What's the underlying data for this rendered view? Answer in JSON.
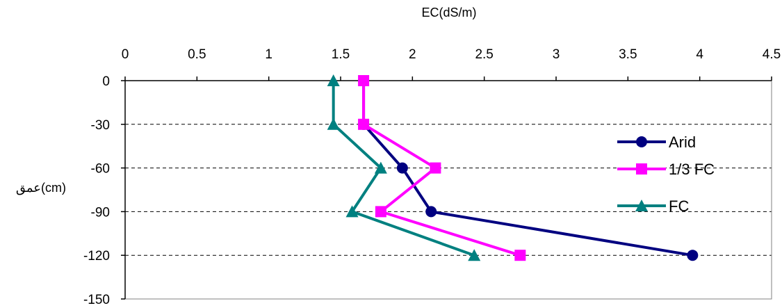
{
  "chart_data": {
    "type": "line",
    "title": "",
    "xlabel": "EC(dS/m)",
    "ylabel": "عمق(cm)",
    "xlim": [
      0,
      4.5
    ],
    "ylim": [
      -150,
      0
    ],
    "x_ticks": [
      "0",
      "0.5",
      "1",
      "1.5",
      "2",
      "2.5",
      "3",
      "3.5",
      "4",
      "4.5"
    ],
    "y_ticks": [
      "0",
      "-30",
      "-60",
      "-90",
      "-120",
      "-150"
    ],
    "x_axis_position": "top",
    "grid": "horizontal dashed",
    "legend_position": "right",
    "series": [
      {
        "name": "Arid",
        "color": "#000080",
        "marker": "circle",
        "points": [
          {
            "x": 1.66,
            "y": 0
          },
          {
            "x": 1.66,
            "y": -30
          },
          {
            "x": 1.93,
            "y": -60
          },
          {
            "x": 2.13,
            "y": -90
          },
          {
            "x": 3.95,
            "y": -120
          }
        ]
      },
      {
        "name": "1/3 FC",
        "color": "#ff00ff",
        "marker": "square",
        "points": [
          {
            "x": 1.66,
            "y": 0
          },
          {
            "x": 1.66,
            "y": -30
          },
          {
            "x": 2.16,
            "y": -60
          },
          {
            "x": 1.78,
            "y": -90
          },
          {
            "x": 2.75,
            "y": -120
          }
        ]
      },
      {
        "name": "FC",
        "color": "#008080",
        "marker": "triangle",
        "points": [
          {
            "x": 1.45,
            "y": 0
          },
          {
            "x": 1.45,
            "y": -30
          },
          {
            "x": 1.78,
            "y": -60
          },
          {
            "x": 1.58,
            "y": -90
          },
          {
            "x": 2.43,
            "y": -120
          }
        ]
      }
    ]
  }
}
